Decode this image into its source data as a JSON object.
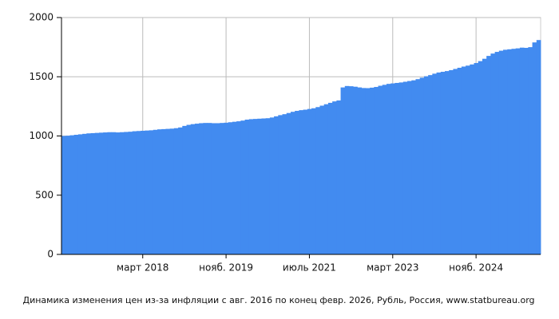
{
  "chart_data": {
    "type": "area",
    "title": "Динамика изменения цен из-за инфляции с авг. 2016 по конец февр. 2026, Рубль, Россия, www.statbureau.org",
    "categories": [
      null,
      null,
      null,
      null,
      null,
      null,
      null,
      null,
      null,
      null,
      null,
      null,
      null,
      null,
      null,
      null,
      null,
      null,
      null,
      "март 2018",
      null,
      null,
      null,
      null,
      null,
      null,
      null,
      null,
      null,
      null,
      null,
      null,
      null,
      null,
      null,
      null,
      null,
      null,
      null,
      "нояб. 2019",
      null,
      null,
      null,
      null,
      null,
      null,
      null,
      null,
      null,
      null,
      null,
      null,
      null,
      null,
      null,
      null,
      null,
      null,
      null,
      "июль 2021",
      null,
      null,
      null,
      null,
      null,
      null,
      null,
      null,
      null,
      null,
      null,
      null,
      null,
      null,
      null,
      null,
      null,
      null,
      null,
      "март 2023",
      null,
      null,
      null,
      null,
      null,
      null,
      null,
      null,
      null,
      null,
      null,
      null,
      null,
      null,
      null,
      null,
      null,
      null,
      null,
      "нояб. 2024",
      null,
      null,
      null,
      null,
      null,
      null,
      null,
      null,
      null,
      null,
      null,
      null,
      null,
      null,
      null
    ],
    "values": [
      1000,
      1002,
      1006,
      1010,
      1014,
      1018,
      1022,
      1024,
      1026,
      1028,
      1030,
      1032,
      1032,
      1030,
      1032,
      1034,
      1036,
      1040,
      1042,
      1044,
      1046,
      1048,
      1052,
      1056,
      1058,
      1060,
      1062,
      1066,
      1072,
      1085,
      1094,
      1100,
      1104,
      1108,
      1110,
      1110,
      1108,
      1108,
      1110,
      1112,
      1116,
      1120,
      1124,
      1130,
      1138,
      1142,
      1144,
      1146,
      1148,
      1150,
      1156,
      1166,
      1176,
      1184,
      1194,
      1204,
      1212,
      1218,
      1222,
      1228,
      1234,
      1244,
      1256,
      1268,
      1280,
      1292,
      1300,
      1410,
      1422,
      1420,
      1416,
      1410,
      1405,
      1404,
      1408,
      1414,
      1424,
      1432,
      1440,
      1444,
      1448,
      1452,
      1458,
      1464,
      1470,
      1480,
      1492,
      1504,
      1514,
      1526,
      1536,
      1542,
      1548,
      1556,
      1566,
      1576,
      1586,
      1594,
      1604,
      1616,
      1632,
      1652,
      1676,
      1696,
      1710,
      1720,
      1728,
      1732,
      1736,
      1740,
      1746,
      1744,
      1750,
      1790,
      1810
    ],
    "color": "#428bf0",
    "ylim": [
      0,
      2000
    ],
    "yticks": [
      0,
      500,
      1000,
      1500,
      2000
    ],
    "grid": true
  }
}
